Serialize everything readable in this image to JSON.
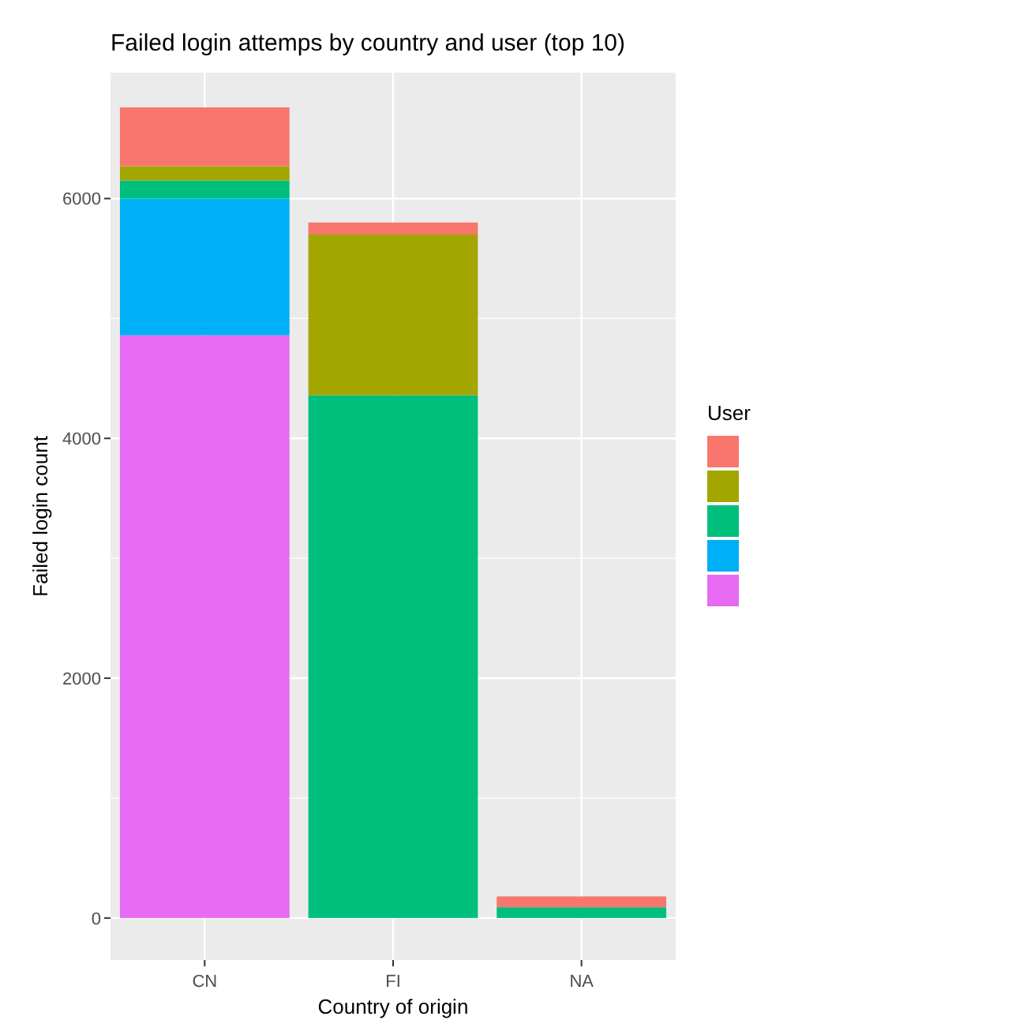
{
  "chart_data": {
    "type": "bar",
    "stacked": true,
    "title": "Failed login attemps by country and user (top 10)",
    "xlabel": "Country of origin",
    "ylabel": "Failed login count",
    "legend_title": "User",
    "grid": true,
    "categories": [
      "CN",
      "FI",
      "NA"
    ],
    "series": [
      {
        "color": "#e76bf3",
        "values": [
          4860,
          0,
          0
        ]
      },
      {
        "color": "#00b0f6",
        "values": [
          1140,
          0,
          0
        ]
      },
      {
        "color": "#00bf7d",
        "values": [
          150,
          4360,
          90
        ]
      },
      {
        "color": "#a3a500",
        "values": [
          120,
          1340,
          0
        ]
      },
      {
        "color": "#f8766d",
        "values": [
          490,
          100,
          90
        ]
      }
    ],
    "ylim": [
      -350,
      7050
    ],
    "yticks": [
      0,
      2000,
      4000,
      6000
    ]
  }
}
